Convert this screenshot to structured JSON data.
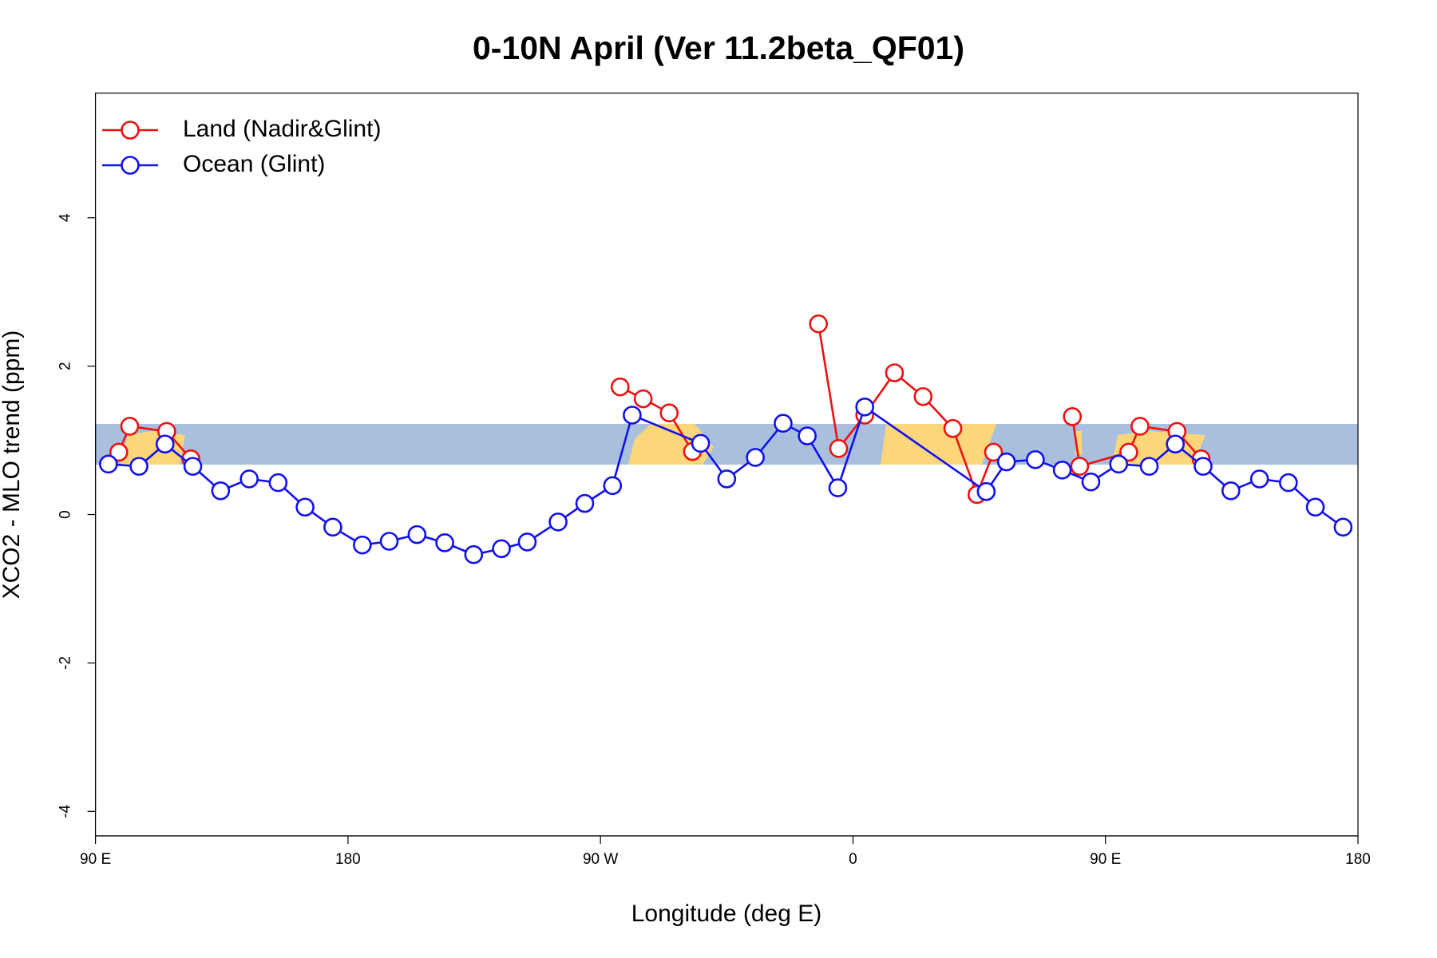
{
  "chart_data": {
    "type": "line",
    "title": "0-10N April (Ver 11.2beta_QF01)",
    "x_label": "Longitude (deg E)",
    "y_label": "XCO2 - MLO trend (ppm)",
    "xlim": [
      90,
      540
    ],
    "ylim": [
      -4.33,
      5.68
    ],
    "xticks": [
      {
        "value": 90,
        "label": "90 E"
      },
      180,
      {
        "value": 270,
        "label": "90 W"
      },
      {
        "value": 360,
        "label": "0"
      },
      {
        "value": 450,
        "label": "90 E"
      },
      180
    ],
    "yticks": [
      -4,
      -2,
      0,
      2,
      4
    ],
    "legend": "top-left",
    "series": [
      {
        "name": "Land (Nadir&Glint)",
        "color": "#ee1111",
        "x": [
          98.3,
          102.2,
          115.4,
          124.0,
          null,
          277.0,
          285.2,
          294.5,
          302.8,
          null,
          347.7,
          354.9,
          364.2,
          374.8,
          385.0,
          395.6,
          404.2,
          410.1,
          null,
          438.2,
          440.8,
          458.3,
          462.3,
          475.5,
          484.1
        ],
        "values": [
          0.84,
          1.19,
          1.12,
          0.75,
          null,
          1.72,
          1.56,
          1.37,
          0.85,
          null,
          2.57,
          0.89,
          1.34,
          1.91,
          1.59,
          1.16,
          0.27,
          0.84,
          null,
          1.32,
          0.65,
          0.84,
          1.19,
          1.12,
          0.75
        ]
      },
      {
        "name": "Ocean (Glint)",
        "color": "#1111ee",
        "x": [
          94.6,
          105.5,
          114.8,
          124.7,
          134.6,
          144.8,
          155.1,
          164.7,
          174.6,
          185.1,
          194.7,
          204.6,
          214.5,
          224.8,
          234.7,
          243.9,
          254.9,
          264.4,
          274.3,
          281.3,
          305.7,
          315.0,
          325.2,
          335.1,
          343.7,
          354.6,
          364.2,
          407.5,
          414.7,
          425.0,
          434.6,
          444.8,
          454.7,
          465.6,
          474.9,
          484.8,
          494.7,
          504.9,
          515.2,
          524.8,
          534.7
        ],
        "values": [
          0.68,
          0.65,
          0.95,
          0.65,
          0.32,
          0.48,
          0.43,
          0.1,
          -0.17,
          -0.41,
          -0.36,
          -0.27,
          -0.38,
          -0.54,
          -0.46,
          -0.37,
          -0.1,
          0.15,
          0.39,
          1.34,
          0.96,
          0.48,
          0.77,
          1.23,
          1.06,
          0.36,
          1.45,
          0.31,
          0.71,
          0.74,
          0.6,
          0.44,
          0.68,
          0.65,
          0.95,
          0.65,
          0.32,
          0.48,
          0.43,
          0.1,
          -0.17
        ]
      }
    ]
  }
}
